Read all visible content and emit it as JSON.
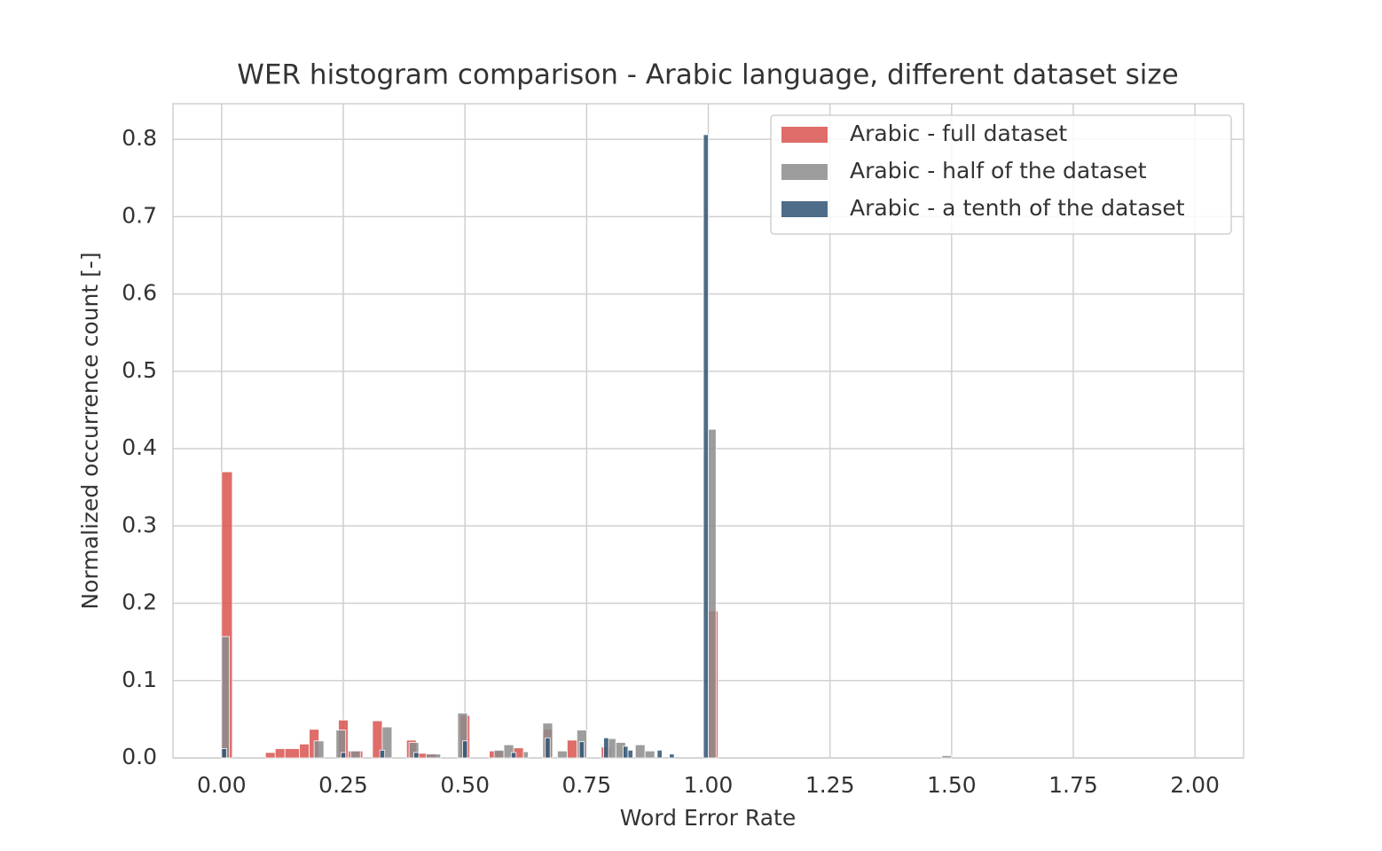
{
  "chart_data": {
    "type": "histogram",
    "title": "WER histogram comparison - Arabic language, different dataset size",
    "x_label": "Word Error Rate",
    "y_label": "Normalized occurrence count [-]",
    "xlim": [
      -0.1,
      2.1
    ],
    "ylim": [
      0,
      0.846
    ],
    "xticks": [
      {
        "value": 0,
        "label": "0.00"
      },
      {
        "value": 0.25,
        "label": "0.25"
      },
      {
        "value": 0.5,
        "label": "0.50"
      },
      {
        "value": 0.75,
        "label": "0.75"
      },
      {
        "value": 1,
        "label": "1.00"
      },
      {
        "value": 1.25,
        "label": "1.25"
      },
      {
        "value": 1.5,
        "label": "1.50"
      },
      {
        "value": 1.75,
        "label": "1.75"
      },
      {
        "value": 2,
        "label": "2.00"
      }
    ],
    "yticks": [
      {
        "value": 0,
        "label": "0.0"
      },
      {
        "value": 0.1,
        "label": "0.1"
      },
      {
        "value": 0.2,
        "label": "0.2"
      },
      {
        "value": 0.3,
        "label": "0.3"
      },
      {
        "value": 0.4,
        "label": "0.4"
      },
      {
        "value": 0.5,
        "label": "0.5"
      },
      {
        "value": 0.6,
        "label": "0.6"
      },
      {
        "value": 0.7,
        "label": "0.7"
      },
      {
        "value": 0.8,
        "label": "0.8"
      }
    ],
    "grid": true,
    "legend": "upper right",
    "series": [
      {
        "name": "Arabic - full dataset",
        "color": "#d9534f",
        "bins": [
          0,
          0.022,
          0.09,
          0.11,
          0.13,
          0.16,
          0.18,
          0.2,
          0.24,
          0.26,
          0.29,
          0.31,
          0.33,
          0.38,
          0.4,
          0.44,
          0.49,
          0.51,
          0.55,
          0.58,
          0.6,
          0.62,
          0.66,
          0.68,
          0.71,
          0.73,
          0.78,
          0.8,
          1.0,
          1.02
        ],
        "values": [
          0.37,
          0,
          0.007,
          0.012,
          0.012,
          0.018,
          0.037,
          0,
          0.049,
          0.009,
          0,
          0.048,
          0,
          0.023,
          0.006,
          0,
          0.055,
          0,
          0.009,
          0,
          0.013,
          0,
          0.037,
          0,
          0.023,
          0,
          0.014,
          0,
          0.19
        ]
      },
      {
        "name": "Arabic - half of the dataset",
        "color": "#8c8c8c",
        "bins": [
          0,
          0.016,
          0.19,
          0.21,
          0.235,
          0.255,
          0.265,
          0.285,
          0.33,
          0.35,
          0.385,
          0.405,
          0.42,
          0.45,
          0.485,
          0.505,
          0.56,
          0.58,
          0.6,
          0.62,
          0.63,
          0.66,
          0.68,
          0.69,
          0.71,
          0.73,
          0.75,
          0.79,
          0.81,
          0.83,
          0.85,
          0.87,
          0.89,
          0.9,
          1.0,
          1.016,
          1.48,
          1.5
        ],
        "values": [
          0.157,
          0,
          0.022,
          0,
          0.036,
          0,
          0.009,
          0,
          0.04,
          0,
          0.02,
          0,
          0.005,
          0,
          0.058,
          0,
          0.01,
          0.017,
          0,
          0.008,
          0,
          0.045,
          0,
          0.009,
          0,
          0.036,
          0,
          0.025,
          0.02,
          0,
          0.017,
          0.009,
          0,
          0,
          0.425,
          0,
          0.003
        ]
      },
      {
        "name": "Arabic - a tenth of the dataset",
        "color": "#2f5373",
        "bins": [
          0,
          0.01,
          0.245,
          0.255,
          0.325,
          0.335,
          0.395,
          0.405,
          0.495,
          0.505,
          0.595,
          0.605,
          0.665,
          0.675,
          0.735,
          0.745,
          0.785,
          0.795,
          0.825,
          0.835,
          0.845,
          0.895,
          0.905,
          0.92,
          0.93,
          0.99,
          1.0
        ],
        "values": [
          0.012,
          0,
          0.007,
          0,
          0.01,
          0,
          0.007,
          0,
          0.022,
          0,
          0.007,
          0,
          0.026,
          0,
          0.021,
          0,
          0.026,
          0,
          0.015,
          0.01,
          0,
          0.01,
          0,
          0.005,
          0,
          0.806
        ]
      }
    ]
  }
}
